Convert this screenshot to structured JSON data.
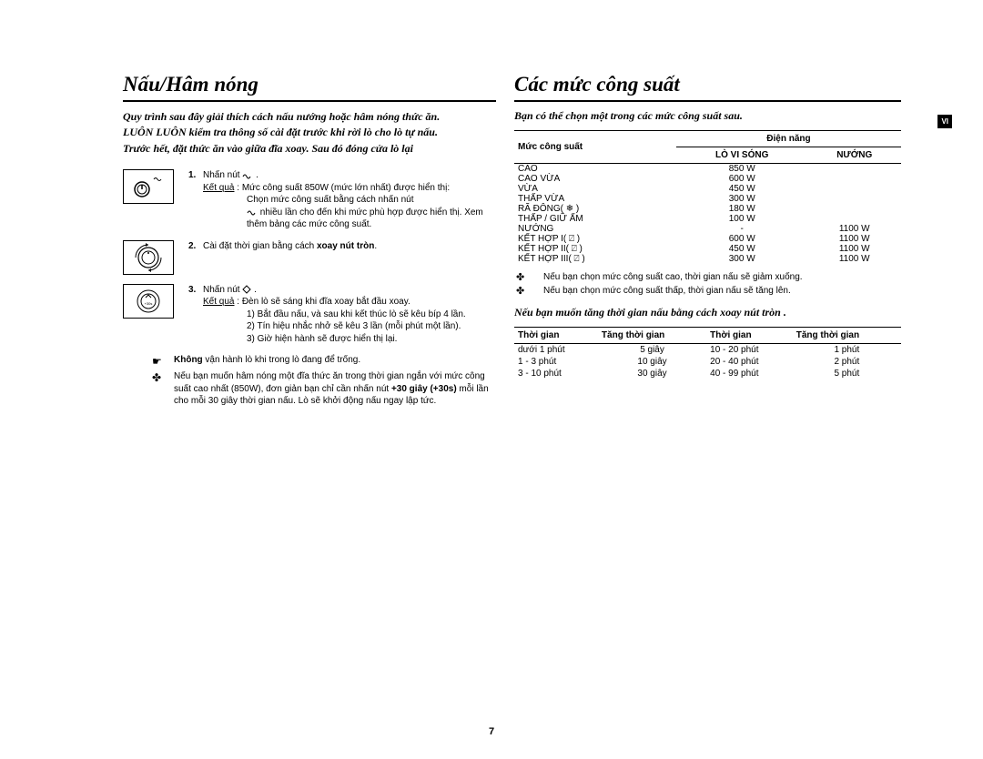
{
  "page_number": "7",
  "language_tab": "VI",
  "left": {
    "title": "Nấu/Hâm nóng",
    "intro_lines": [
      "Quy trình sau đây giải thích cách nấu nướng hoặc hâm nóng thức ăn.",
      "LUÔN LUÔN kiểm tra thông số cài đặt trước khi rời lò cho lò tự nấu.",
      "Trước hết, đặt thức ăn vào giữa đĩa xoay. Sau đó đóng cửa lò lại"
    ],
    "step1": {
      "num": "1.",
      "l1": "Nhấn nút ",
      "kq_label": "Kết quả",
      "kq_sep": " :  ",
      "kq_text": "Mức công suất 850W (mức lớn nhất) được hiển thị:",
      "l2a": "Chọn mức công suất bằng cách nhấn nút ",
      "l2b": " nhiều lần cho đến khi mức phù hợp được hiển thị. Xem thêm bảng các mức công suất."
    },
    "step2": {
      "num": "2.",
      "text_a": "Cài đặt thời gian bằng cách ",
      "text_b": "xoay nút tròn"
    },
    "step3": {
      "num": "3.",
      "l1a": "Nhấn nút ",
      "l1b": " .",
      "kq_label": "Kết quả",
      "kq_sep": " :  ",
      "kq_text": "Đèn lò sẽ sáng khi đĩa xoay bắt đầu xoay.",
      "li1": "1) Bắt đầu nấu, và sau khi kết thúc lò sẽ kêu bíp 4 lần.",
      "li2": "2) Tín hiệu nhắc nhở sẽ kêu 3 lần (mỗi phút một lần).",
      "li3": "3) Giờ hiện hành sẽ được hiển thị lại."
    },
    "note1": {
      "sym": "☛",
      "text_b1": "Không",
      "text_b2": " vận hành lò khi trong lò đang để trống."
    },
    "note2": {
      "sym": "✤",
      "text": "Nếu bạn muốn hâm nóng một đĩa thức ăn trong thời gian ngắn với mức công suất cao nhất (850W), đơn giản bạn chỉ cần nhấn nút ",
      "bold": "+30 giây (+30s)",
      "text2": " mỗi lần cho mỗi 30 giây thời gian nấu. Lò sẽ khởi động nấu ngay lập tức."
    }
  },
  "right": {
    "title": "Các mức công suất",
    "sub": "Bạn có thể chọn một trong các mức công suất sau.",
    "power_table": {
      "head_power": "Mức công suất",
      "head_energy": "Điện năng",
      "sub_micro": "LÒ VI SÓNG",
      "sub_grill": "NƯỚNG",
      "rows": [
        {
          "a": "CAO",
          "b": "850 W",
          "c": ""
        },
        {
          "a": "CAO VỪA",
          "b": "600 W",
          "c": ""
        },
        {
          "a": "VỪA",
          "b": "450 W",
          "c": ""
        },
        {
          "a": "THẤP VỪA",
          "b": "300 W",
          "c": ""
        },
        {
          "a": "RÃ ĐÔNG( ❄ )",
          "b": "180 W",
          "c": ""
        },
        {
          "a": "THẤP / GIỮ ẤM",
          "b": "100 W",
          "c": ""
        },
        {
          "a": "NƯỚNG",
          "b": "-",
          "c": "1100 W"
        },
        {
          "a": "KẾT HỢP I( ⍁ )",
          "b": "600 W",
          "c": "1100 W"
        },
        {
          "a": "KẾT HỢP II( ⍁ )",
          "b": "450 W",
          "c": "1100 W"
        },
        {
          "a": "KẾT HỢP III( ⍁ )",
          "b": "300 W",
          "c": "1100 W"
        }
      ]
    },
    "rnote1": {
      "sym": "✤",
      "text": "Nếu bạn chọn mức công suất cao, thời gian nấu sẽ giảm xuống."
    },
    "rnote2": {
      "sym": "✤",
      "text": "Nếu bạn chọn mức công suất thấp, thời gian nấu sẽ tăng lên."
    },
    "time_intro": "Nếu bạn muốn tăng thời gian nấu bằng cách xoay nút tròn .",
    "time_table": {
      "h1": "Thời gian",
      "h2": "Tăng thời gian",
      "h3": "Thời gian",
      "h4": "Tăng thời gian",
      "rows": [
        {
          "a": "dưới 1 phút",
          "b": "5 giây",
          "c": "10 - 20 phút",
          "d": "1 phút"
        },
        {
          "a": "1 - 3 phút",
          "b": "10 giây",
          "c": "20 - 40 phút",
          "d": "2 phút"
        },
        {
          "a": "3 - 10 phút",
          "b": "30 giây",
          "c": "40 - 99 phút",
          "d": "5 phút"
        }
      ]
    }
  }
}
